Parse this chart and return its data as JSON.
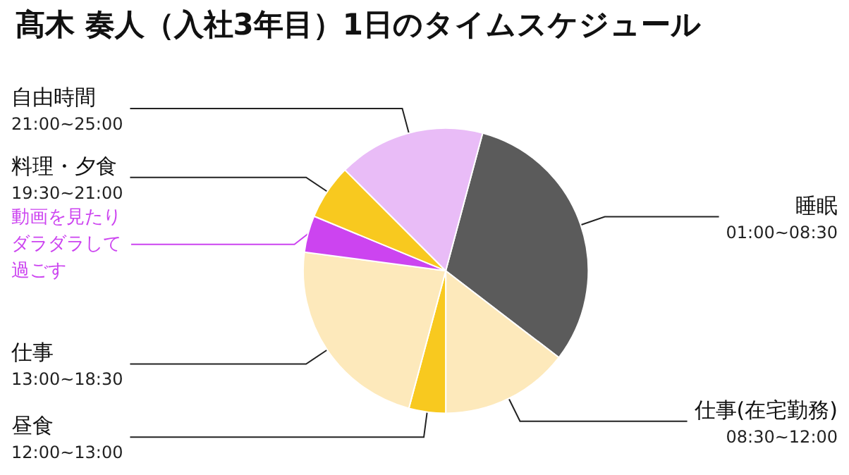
{
  "chart_data": {
    "type": "pie",
    "title": "髙木 奏人（入社3年目）1日のタイムスケジュール",
    "categories": [
      "睡眠\n01:00~08:30",
      "仕事(在宅勤務)\n08:30~12:00",
      "昼食\n12:00~13:00",
      "仕事\n13:00~18:30",
      "動画を見たりダラダラして過ごす",
      "料理・夕食\n19:30~21:00",
      "自由時間\n21:00~25:00"
    ],
    "values": [
      31.25,
      14.58,
      4.17,
      22.92,
      4.17,
      6.25,
      16.66
    ],
    "colors": [
      "#5b5b5b",
      "#fde9bb",
      "#f8c91f",
      "#fde9bb",
      "#cc44f0",
      "#f8c91f",
      "#e9bcf7"
    ],
    "legend": false
  }
}
